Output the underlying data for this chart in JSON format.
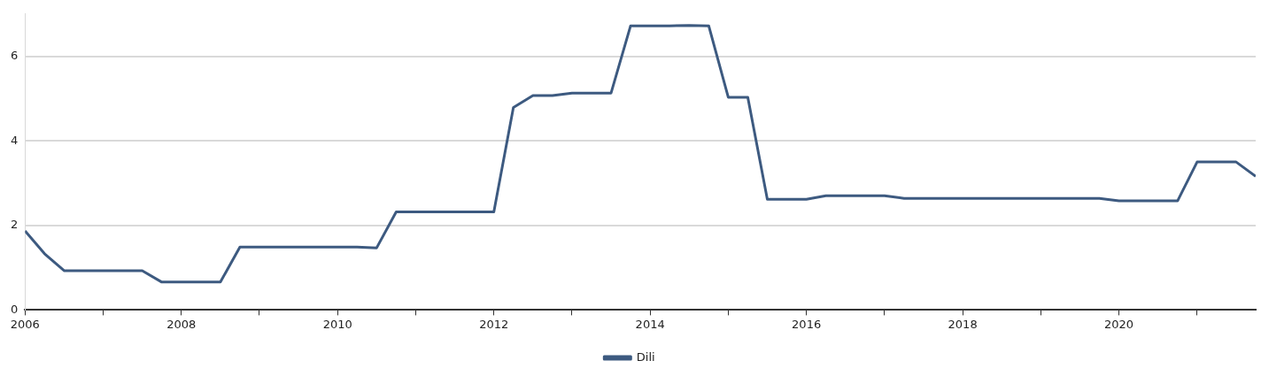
{
  "chart_data": {
    "type": "line",
    "x": [
      2006,
      2006.25,
      2006.5,
      2006.75,
      2007,
      2007.25,
      2007.5,
      2007.75,
      2008,
      2008.25,
      2008.5,
      2008.75,
      2009,
      2009.25,
      2009.5,
      2009.75,
      2010,
      2010.25,
      2010.5,
      2010.75,
      2011,
      2011.25,
      2011.5,
      2011.75,
      2012,
      2012.25,
      2012.5,
      2012.75,
      2013,
      2013.25,
      2013.5,
      2013.75,
      2014,
      2014.25,
      2014.5,
      2014.75,
      2015,
      2015.25,
      2015.5,
      2015.75,
      2016,
      2016.25,
      2016.5,
      2016.75,
      2017,
      2017.25,
      2017.5,
      2017.75,
      2018,
      2018.25,
      2018.5,
      2018.75,
      2019,
      2019.25,
      2019.5,
      2019.75,
      2020,
      2020.25,
      2020.5,
      2020.75,
      2021,
      2021.25,
      2021.5,
      2021.75
    ],
    "series": [
      {
        "name": "Dili",
        "color": "#3d5a80",
        "values": [
          1.87,
          1.33,
          0.93,
          0.93,
          0.93,
          0.93,
          0.93,
          0.66,
          0.66,
          0.66,
          0.66,
          1.49,
          1.49,
          1.49,
          1.49,
          1.49,
          1.49,
          1.49,
          1.47,
          2.32,
          2.32,
          2.32,
          2.32,
          2.32,
          2.32,
          4.79,
          5.07,
          5.07,
          5.13,
          5.13,
          5.13,
          6.72,
          6.72,
          6.72,
          6.73,
          6.72,
          5.03,
          5.03,
          2.62,
          2.62,
          2.62,
          2.7,
          2.7,
          2.7,
          2.7,
          2.64,
          2.64,
          2.64,
          2.64,
          2.64,
          2.64,
          2.64,
          2.64,
          2.64,
          2.64,
          2.64,
          2.58,
          2.58,
          2.58,
          2.58,
          3.5,
          3.5,
          3.5,
          3.16
        ]
      }
    ],
    "xlim": [
      2006,
      2021.75
    ],
    "xticks": [
      2006,
      {
        "value": 2007,
        "label": null
      },
      2008,
      {
        "value": 2009,
        "label": null
      },
      2010,
      {
        "value": 2011,
        "label": null
      },
      2012,
      {
        "value": 2013,
        "label": null
      },
      2014,
      {
        "value": 2015,
        "label": null
      },
      2016,
      {
        "value": 2017,
        "label": null
      },
      2018,
      {
        "value": 2019,
        "label": null
      },
      2020,
      {
        "value": 2021,
        "label": null
      }
    ],
    "ylim": [
      0,
      7
    ],
    "yticks": [
      0,
      2,
      4,
      6
    ],
    "grid": "y",
    "legend": "bottom",
    "marker": "none",
    "line_style": "solid"
  }
}
